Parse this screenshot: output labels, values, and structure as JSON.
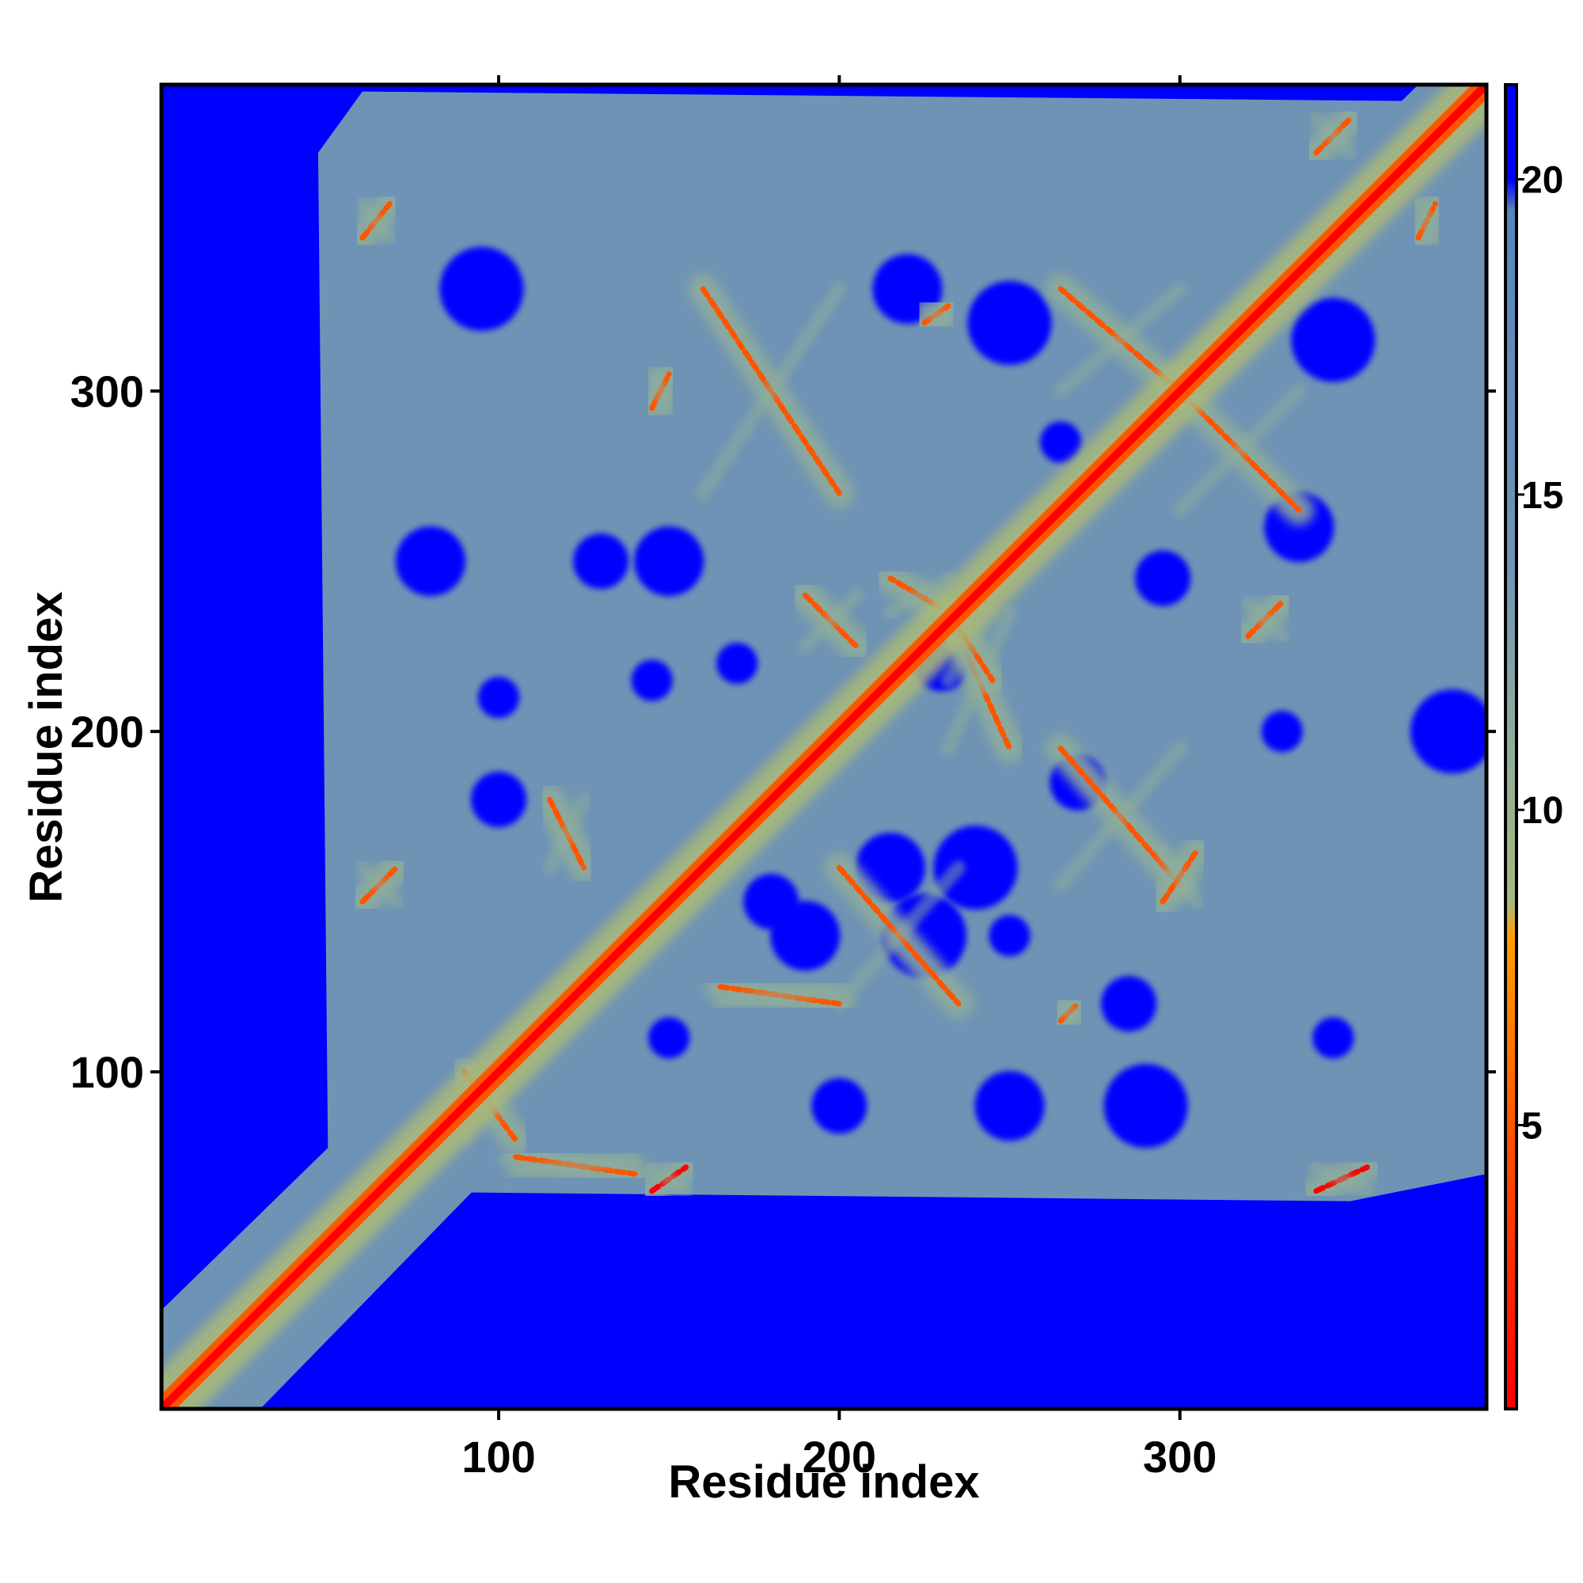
{
  "chart_data": {
    "type": "heatmap",
    "title": "",
    "xlabel": "Residue index",
    "ylabel": "Residue index",
    "xlim": [
      1,
      390
    ],
    "ylim": [
      1,
      390
    ],
    "x_ticks": [
      100,
      200,
      300
    ],
    "y_ticks": [
      100,
      200,
      300
    ],
    "colorbar": {
      "range": [
        0.5,
        21.5
      ],
      "ticks": [
        5,
        10,
        15,
        20
      ],
      "colors": [
        {
          "value": 0.5,
          "color": "#ff0000"
        },
        {
          "value": 5,
          "color": "#ff5500"
        },
        {
          "value": 8,
          "color": "#ffa000"
        },
        {
          "value": 8.5,
          "color": "#a8b87a"
        },
        {
          "value": 11,
          "color": "#8fae9a"
        },
        {
          "value": 14,
          "color": "#6f93b5"
        },
        {
          "value": 19.5,
          "color": "#5686bc"
        },
        {
          "value": 20,
          "color": "#0000ff"
        },
        {
          "value": 21.5,
          "color": "#0000ff"
        }
      ]
    },
    "grid": false,
    "legend": "right",
    "description_values": {
      "diagonal_distance": 1,
      "background_distance": 21,
      "matrix_size": 390
    },
    "contact_features": [
      {
        "from": [
          160,
          330
        ],
        "to": [
          200,
          270
        ],
        "value": 6
      },
      {
        "from": [
          300,
          300
        ],
        "to": [
          335,
          265
        ],
        "value": 6
      },
      {
        "from": [
          300,
          300
        ],
        "to": [
          265,
          330
        ],
        "value": 6
      },
      {
        "from": [
          232,
          235
        ],
        "to": [
          215,
          245
        ],
        "value": 6
      },
      {
        "from": [
          232,
          235
        ],
        "to": [
          250,
          195
        ],
        "value": 6
      },
      {
        "from": [
          232,
          235
        ],
        "to": [
          245,
          215
        ],
        "value": 7
      },
      {
        "from": [
          200,
          160
        ],
        "to": [
          235,
          120
        ],
        "value": 6
      },
      {
        "from": [
          265,
          195
        ],
        "to": [
          300,
          155
        ],
        "value": 6
      },
      {
        "from": [
          105,
          75
        ],
        "to": [
          140,
          70
        ],
        "value": 7
      },
      {
        "from": [
          145,
          65
        ],
        "to": [
          155,
          72
        ],
        "value": 5
      },
      {
        "from": [
          60,
          150
        ],
        "to": [
          70,
          160
        ],
        "value": 6
      },
      {
        "from": [
          60,
          345
        ],
        "to": [
          68,
          355
        ],
        "value": 6
      },
      {
        "from": [
          340,
          65
        ],
        "to": [
          355,
          72
        ],
        "value": 5
      },
      {
        "from": [
          340,
          370
        ],
        "to": [
          350,
          380
        ],
        "value": 6
      },
      {
        "from": [
          370,
          345
        ],
        "to": [
          375,
          355
        ],
        "value": 6
      },
      {
        "from": [
          225,
          320
        ],
        "to": [
          232,
          325
        ],
        "value": 6
      },
      {
        "from": [
          145,
          295
        ],
        "to": [
          150,
          305
        ],
        "value": 6
      },
      {
        "from": [
          165,
          125
        ],
        "to": [
          200,
          120
        ],
        "value": 7
      },
      {
        "from": [
          115,
          180
        ],
        "to": [
          125,
          160
        ],
        "value": 7
      },
      {
        "from": [
          90,
          100
        ],
        "to": [
          105,
          80
        ],
        "value": 7
      },
      {
        "from": [
          320,
          228
        ],
        "to": [
          330,
          238
        ],
        "value": 6
      },
      {
        "from": [
          295,
          150
        ],
        "to": [
          305,
          165
        ],
        "value": 6
      },
      {
        "from": [
          265,
          115
        ],
        "to": [
          270,
          120
        ],
        "value": 6
      },
      {
        "from": [
          190,
          240
        ],
        "to": [
          205,
          225
        ],
        "value": 7
      }
    ],
    "far_patches": [
      [
        100,
        210
      ],
      [
        130,
        250
      ],
      [
        80,
        250
      ],
      [
        95,
        330
      ],
      [
        170,
        220
      ],
      [
        180,
        150
      ],
      [
        215,
        160
      ],
      [
        225,
        140
      ],
      [
        250,
        140
      ],
      [
        285,
        120
      ],
      [
        335,
        260
      ],
      [
        380,
        200
      ],
      [
        330,
        200
      ],
      [
        295,
        245
      ],
      [
        220,
        330
      ],
      [
        250,
        320
      ],
      [
        265,
        285
      ],
      [
        270,
        185
      ],
      [
        190,
        140
      ],
      [
        240,
        160
      ],
      [
        150,
        110
      ],
      [
        200,
        90
      ],
      [
        250,
        90
      ],
      [
        290,
        90
      ],
      [
        345,
        110
      ],
      [
        230,
        220
      ],
      [
        150,
        250
      ],
      [
        345,
        315
      ],
      [
        145,
        215
      ],
      [
        100,
        180
      ]
    ]
  }
}
